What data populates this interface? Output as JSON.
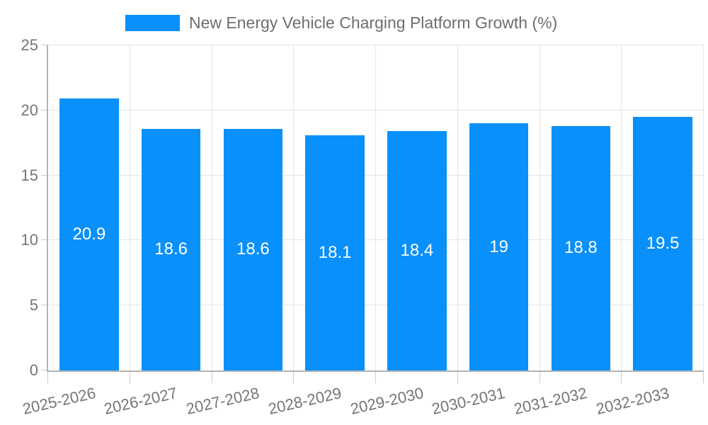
{
  "legend": {
    "label": "New Energy Vehicle Charging Platform Growth (%)"
  },
  "chart_data": {
    "type": "bar",
    "title": "New Energy Vehicle Charging Platform Growth (%)",
    "categories": [
      "2025-2026",
      "2026-2027",
      "2027-2028",
      "2028-2029",
      "2029-2030",
      "2030-2031",
      "2031-2032",
      "2032-2033"
    ],
    "values": [
      20.9,
      18.6,
      18.6,
      18.1,
      18.4,
      19,
      18.8,
      19.5
    ],
    "bar_labels": [
      "20.9",
      "18.6",
      "18.6",
      "18.1",
      "18.4",
      "19",
      "18.8",
      "19.5"
    ],
    "xlabel": "",
    "ylabel": "",
    "ylim": [
      0,
      25
    ],
    "yticks": [
      0,
      5,
      10,
      15,
      20,
      25
    ],
    "grid": true,
    "legend_position": "top",
    "colors": {
      "bar": "#0990fa",
      "bar_label": "#ffffff",
      "axis_text": "#757575",
      "legend_text": "#6e6e6e",
      "gridline": "#e5e5e5",
      "axis_line": "#b3b3b3",
      "tick_mark": "#c9c9c9",
      "background": "#ffffff"
    }
  }
}
